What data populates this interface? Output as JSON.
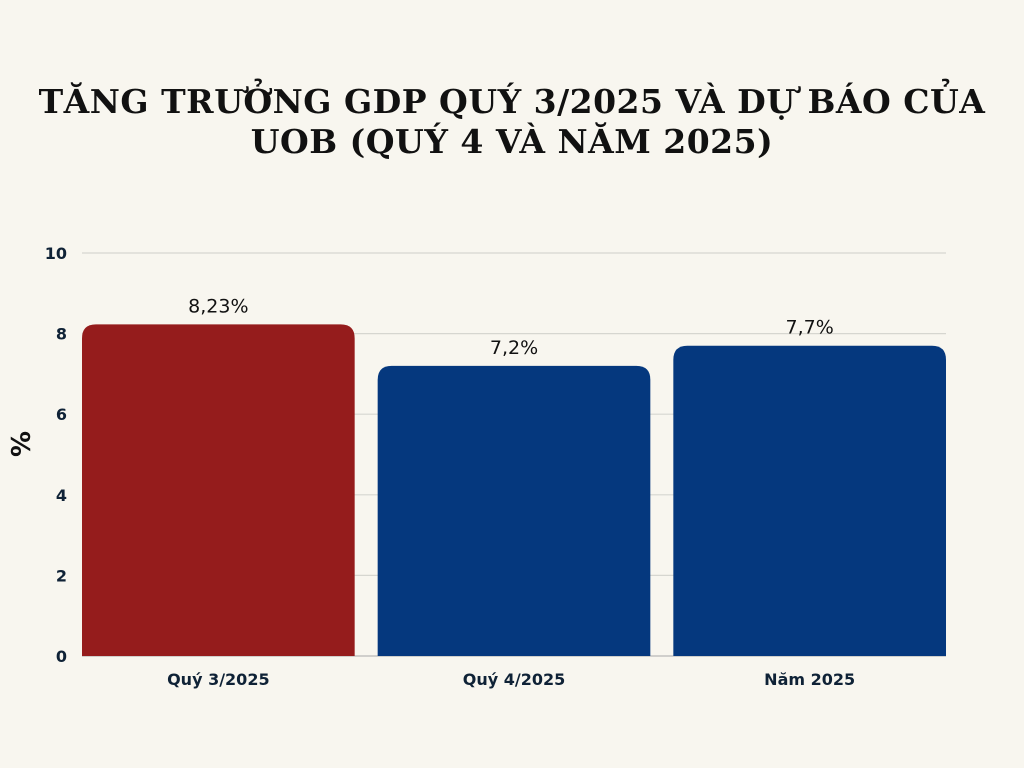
{
  "chart_data": {
    "type": "bar",
    "title_lines": [
      "TĂNG TRƯỞNG GDP QUÝ 3/2025 VÀ DỰ BÁO CỦA",
      "UOB (QUÝ 4 VÀ NĂM 2025)"
    ],
    "categories": [
      "Quý 3/2025",
      "Quý 4/2025",
      "Năm 2025"
    ],
    "values": [
      8.23,
      7.2,
      7.7
    ],
    "data_labels": [
      "8,23%",
      "7,2%",
      "7,7%"
    ],
    "bar_colors": [
      "#951c1c",
      "#05387e",
      "#05387e"
    ],
    "xlabel": "",
    "ylabel": "%",
    "ylim": [
      0,
      10
    ],
    "yticks": [
      0,
      2,
      4,
      6,
      8,
      10
    ],
    "grid": true,
    "legend": "none"
  }
}
